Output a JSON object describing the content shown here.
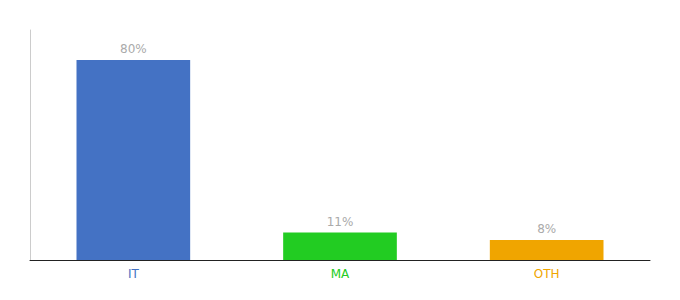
{
  "chart_data": {
    "type": "bar",
    "categories": [
      "IT",
      "MA",
      "OTH"
    ],
    "values": [
      80,
      11,
      8
    ],
    "value_labels": [
      "80%",
      "11%",
      "8%"
    ],
    "data_labels": true,
    "colors": [
      "#4472c4",
      "#22cc22",
      "#f0a500"
    ],
    "ylim": [
      0,
      92
    ],
    "tick_labels": "x",
    "grid": false
  }
}
